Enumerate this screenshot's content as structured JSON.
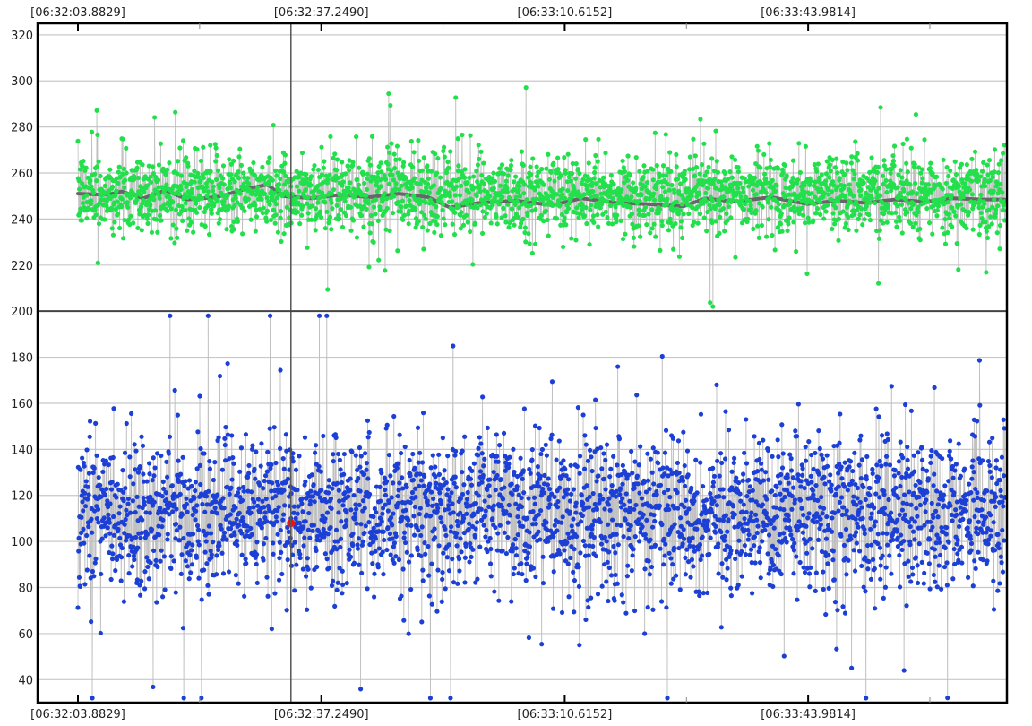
{
  "chart_data": {
    "type": "scatter",
    "title": "",
    "xlabel": "",
    "ylabel": "",
    "x_tick_labels_top": [
      "[06:32:03.8829]",
      "[06:32:37.2490]",
      "[06:33:10.6152]",
      "[06:33:43.9814]"
    ],
    "x_tick_labels_bottom": [
      "[06:32:03.8829]",
      "[06:32:37.2490]",
      "[06:33:10.6152]",
      "[06:33:43.9814]"
    ],
    "x_tick_seconds": [
      0,
      33.3661,
      66.7323,
      100.0985
    ],
    "x_range_seconds": [
      0,
      127.1
    ],
    "y_ticks": [
      40,
      60,
      80,
      100,
      120,
      140,
      160,
      180,
      200,
      220,
      240,
      260,
      280,
      300,
      320
    ],
    "y_range": [
      30,
      325
    ],
    "grid": true,
    "cursor_x_seconds": 29.2,
    "panels": [
      {
        "name": "",
        "y_range": [
          200,
          325
        ],
        "color": "#22e04c",
        "mean_level": 251,
        "spread": 15,
        "point_count": 2600,
        "trend_color": "#666666",
        "trend": [
          [
            0,
            251
          ],
          [
            4,
            250.5
          ],
          [
            6,
            252
          ],
          [
            9,
            249
          ],
          [
            12,
            252.5
          ],
          [
            15,
            248.5
          ],
          [
            19,
            249.5
          ],
          [
            23,
            253
          ],
          [
            26,
            255
          ],
          [
            28,
            250
          ],
          [
            32,
            249
          ],
          [
            36,
            250.5
          ],
          [
            40,
            249.5
          ],
          [
            44,
            251
          ],
          [
            48,
            249.5
          ],
          [
            51,
            245
          ],
          [
            55,
            247
          ],
          [
            60,
            248
          ],
          [
            65,
            246
          ],
          [
            69,
            249
          ],
          [
            74,
            247
          ],
          [
            78,
            246.5
          ],
          [
            83,
            245.5
          ],
          [
            86,
            249
          ],
          [
            90,
            247.5
          ],
          [
            95,
            249.5
          ],
          [
            100,
            246.5
          ],
          [
            104,
            248
          ],
          [
            108,
            247
          ],
          [
            112,
            248.5
          ],
          [
            116,
            247.5
          ],
          [
            120,
            249
          ],
          [
            124,
            248.5
          ],
          [
            127,
            248.5
          ]
        ]
      },
      {
        "name": "",
        "y_range": [
          30,
          200
        ],
        "color": "#1c3fd6",
        "mean_level": 112,
        "spread": 30,
        "point_count": 2900
      }
    ],
    "highlight_point": {
      "x_seconds": 29.2,
      "y": 108,
      "color": "#ee1111"
    }
  }
}
